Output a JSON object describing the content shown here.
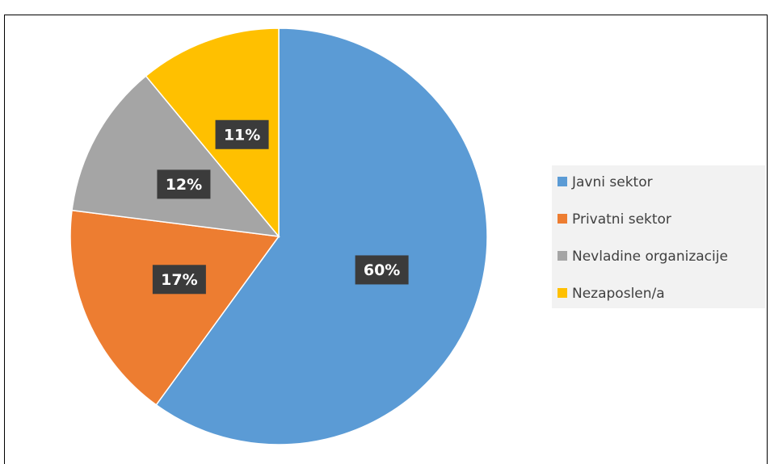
{
  "chart_data": {
    "type": "pie",
    "categories": [
      "Javni sektor",
      "Privatni sektor",
      "Nevladine organizacije",
      "Nezaposlen/a"
    ],
    "values": [
      60,
      17,
      12,
      11
    ],
    "value_labels": [
      "60%",
      "17%",
      "12%",
      "11%"
    ],
    "colors": [
      "#5b9bd5",
      "#ed7d31",
      "#a5a5a5",
      "#ffc000"
    ],
    "legend": "right"
  }
}
